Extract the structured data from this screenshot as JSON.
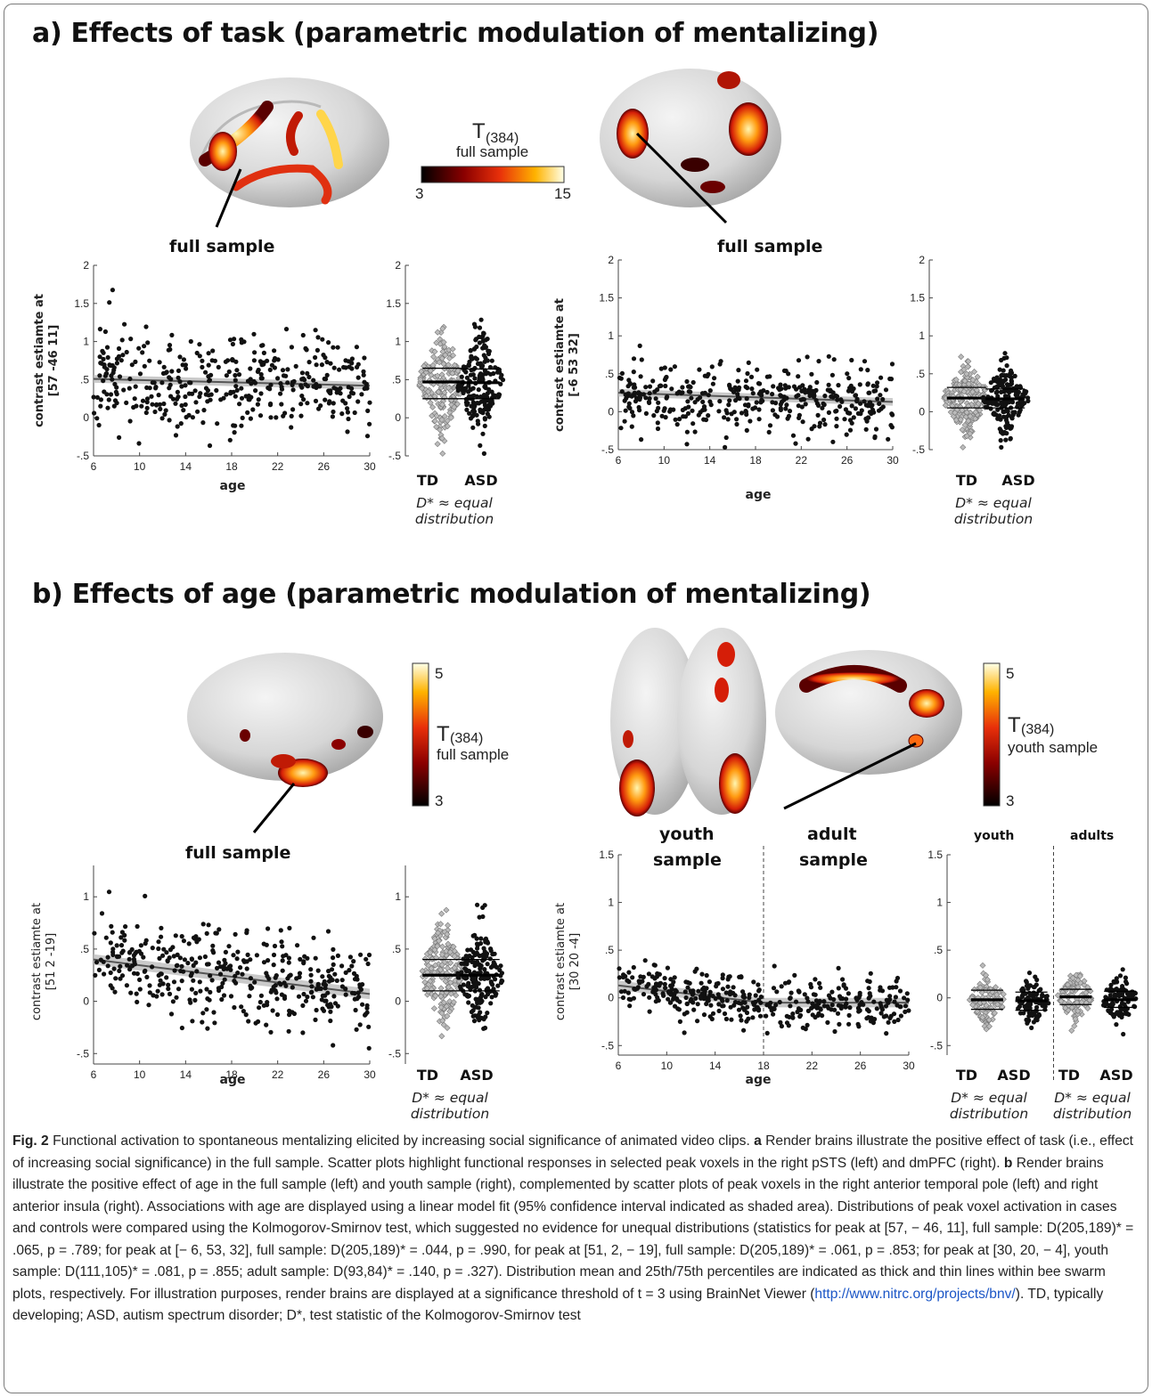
{
  "panel_a": {
    "title": "a) Effects of task (parametric modulation of mentalizing)",
    "colorbar": {
      "label": "T",
      "sub": "(384)",
      "note": "full sample",
      "min": "3",
      "max": "15"
    },
    "left_label": "full sample",
    "right_label": "full sample"
  },
  "panel_b": {
    "title": "b) Effects of age (parametric modulation of mentalizing)",
    "colorbar_left": {
      "label": "T",
      "sub": "(384)",
      "note": "full sample",
      "min": "3",
      "max": "5"
    },
    "colorbar_right": {
      "label": "T",
      "sub": "(384)",
      "note": "youth sample",
      "min": "3",
      "max": "5"
    },
    "left_label": "full sample",
    "youth_label_1": "youth",
    "youth_label_2": "sample",
    "adult_label_1": "adult",
    "adult_label_2": "sample",
    "swarm_youth_head": "youth",
    "swarm_adults_head": "adults"
  },
  "common": {
    "xlabel": "age",
    "group_td": "TD",
    "group_asd": "ASD",
    "dstar_line1": "D* ≈ equal",
    "dstar_line2": "distribution"
  },
  "caption": {
    "fig_label": "Fig. 2",
    "text1": " Functional activation to spontaneous mentalizing elicited by increasing social significance of animated video clips. ",
    "a": "a",
    "text2": " Render brains illustrate the positive effect of task (i.e., effect of increasing social significance) in the full sample. Scatter plots highlight functional responses in selected peak voxels in the right pSTS (left) and dmPFC (right). ",
    "b": "b",
    "text3": " Render brains illustrate the positive effect of age in the full sample (left) and youth sample (right), complemented by scatter plots of peak voxels in the right anterior temporal pole (left) and right anterior insula (right). Associations with age are displayed using a linear model fit (95% confidence interval indicated as shaded area). Distributions of peak voxel activation in cases and controls were compared using the Kolmogorov-Smirnov test, which suggested no evidence for unequal distributions (statistics for peak at [57, − 46, 11], full sample: D(205,189)* = .065, p = .789; for peak at [− 6, 53, 32], full sample: D(205,189)* = .044, p = .990, for peak at [51, 2, − 19], full sample: D(205,189)* = .061, p = .853; for peak at [30, 20, − 4], youth sample: D(111,105)* = .081, p = .855; adult sample: D(93,84)* = .140, p = .327). Distribution mean and 25th/75th percentiles are indicated as thick and thin lines within bee swarm plots, respectively. For illustration purposes, render brains are displayed at a significance threshold of t = 3 using BrainNet Viewer (",
    "link": "http://www.nitrc.org/projects/bnv/",
    "text4": "). TD, typically developing; ASD, autism spectrum disorder; D*, test statistic of the Kolmogorov-Smirnov test"
  },
  "chart_data": [
    {
      "type": "scatter",
      "id": "a_left",
      "ylabel": "contrast estiamte at [57 -46 11]",
      "xlabel": "age",
      "xlim": [
        6,
        30
      ],
      "ylim": [
        -0.5,
        2
      ],
      "xticks": [
        6,
        10,
        14,
        18,
        22,
        26,
        30
      ],
      "yticks": [
        -0.5,
        0,
        0.5,
        1,
        1.5,
        2
      ],
      "fit": {
        "x": [
          6,
          30
        ],
        "y": [
          0.51,
          0.42
        ]
      },
      "swarm": {
        "groups": [
          "TD",
          "ASD"
        ],
        "mean": [
          0.47,
          0.46
        ],
        "p25": [
          0.25,
          0.25
        ],
        "p75": [
          0.65,
          0.64
        ],
        "ylim": [
          -0.5,
          2
        ]
      },
      "n": 394,
      "y_center": 0.47,
      "y_sd": 0.33,
      "seed": 11
    },
    {
      "type": "scatter",
      "id": "a_right",
      "ylabel": "contrast estiamte at [-6 53 32]",
      "xlabel": "age",
      "xlim": [
        6,
        30
      ],
      "ylim": [
        -0.5,
        2
      ],
      "xticks": [
        6,
        10,
        14,
        18,
        22,
        26,
        30
      ],
      "yticks": [
        -0.5,
        0,
        0.5,
        1,
        1.5,
        2
      ],
      "fit": {
        "x": [
          6,
          30
        ],
        "y": [
          0.25,
          0.13
        ]
      },
      "swarm": {
        "groups": [
          "TD",
          "ASD"
        ],
        "mean": [
          0.18,
          0.17
        ],
        "p25": [
          0.05,
          0.05
        ],
        "p75": [
          0.32,
          0.3
        ],
        "ylim": [
          -0.5,
          2
        ]
      },
      "n": 394,
      "y_center": 0.18,
      "y_sd": 0.22,
      "seed": 23
    },
    {
      "type": "scatter",
      "id": "b_left",
      "ylabel": "contrast estiamte at [51 2 -19]",
      "xlabel": "age",
      "xlim": [
        6,
        30
      ],
      "ylim": [
        -0.6,
        1.3
      ],
      "xticks": [
        6,
        10,
        14,
        18,
        22,
        26,
        30
      ],
      "yticks": [
        -0.5,
        0,
        0.5,
        1
      ],
      "fit": {
        "x": [
          6,
          30
        ],
        "y": [
          0.4,
          0.07
        ]
      },
      "swarm": {
        "groups": [
          "TD",
          "ASD"
        ],
        "mean": [
          0.25,
          0.25
        ],
        "p25": [
          0.1,
          0.1
        ],
        "p75": [
          0.4,
          0.4
        ],
        "ylim": [
          -0.6,
          1.3
        ]
      },
      "n": 394,
      "y_center": 0.25,
      "y_sd": 0.22,
      "seed": 37
    },
    {
      "type": "scatter",
      "id": "b_right",
      "ylabel": "contrast estiamte at [30 20 -4]",
      "xlabel": "age",
      "xlim": [
        6,
        30
      ],
      "ylim": [
        -0.6,
        1.5
      ],
      "xticks": [
        6,
        10,
        14,
        18,
        22,
        26,
        30
      ],
      "yticks": [
        -0.5,
        0,
        0.5,
        1,
        1.5
      ],
      "divider_x": 18,
      "fit": {
        "x": [
          6,
          18
        ],
        "y": [
          0.13,
          -0.05
        ]
      },
      "fit2": {
        "x": [
          18,
          30
        ],
        "y": [
          -0.05,
          -0.05
        ]
      },
      "swarm": {
        "groups": [
          "TD",
          "ASD",
          "TD",
          "ASD"
        ],
        "mean": [
          -0.02,
          -0.03,
          0.01,
          -0.02
        ],
        "p25": [
          -0.12,
          -0.13,
          -0.07,
          -0.1
        ],
        "p75": [
          0.08,
          0.06,
          0.09,
          0.07
        ],
        "ylim": [
          -0.6,
          1.5
        ]
      },
      "n": 394,
      "y_center": 0.0,
      "y_sd": 0.13,
      "seed": 51
    }
  ]
}
